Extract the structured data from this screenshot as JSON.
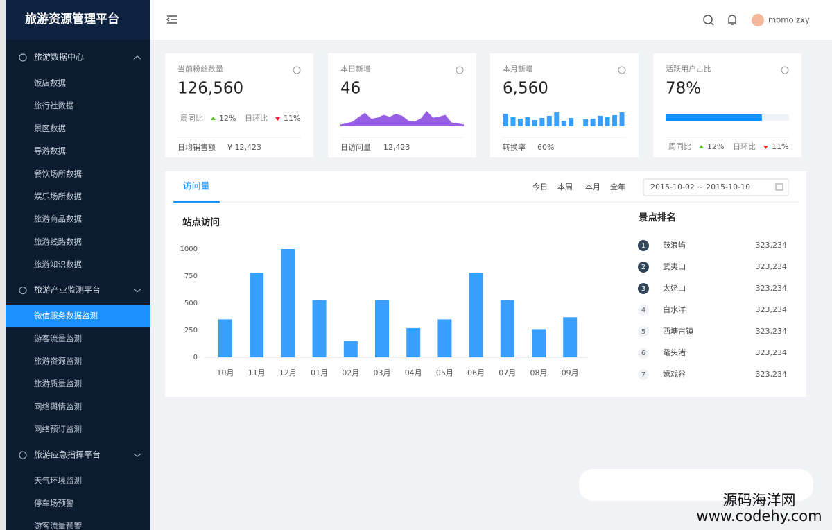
{
  "sidebar": {
    "title": "旅游资源管理平台",
    "groups": [
      {
        "label": "旅游数据中心",
        "items": [
          {
            "label": "饭店数据"
          },
          {
            "label": "旅行社数据"
          },
          {
            "label": "景区数据"
          },
          {
            "label": "导游数据"
          },
          {
            "label": "餐饮场所数据"
          },
          {
            "label": "娱乐场所数据"
          },
          {
            "label": "旅游商品数据"
          },
          {
            "label": "旅游线路数据"
          },
          {
            "label": "旅游知识数据"
          }
        ]
      },
      {
        "label": "旅游产业监测平台",
        "items": [
          {
            "label": "微信服务数据监测",
            "active": true
          },
          {
            "label": "游客流量监测"
          },
          {
            "label": "旅游资源监测"
          },
          {
            "label": "旅游质量监测"
          },
          {
            "label": "网络舆情监测"
          },
          {
            "label": "网络预订监测"
          }
        ]
      },
      {
        "label": "旅游应急指挥平台",
        "items": [
          {
            "label": "天气环境监测"
          },
          {
            "label": "停车场预警"
          },
          {
            "label": "游客流量预警"
          }
        ]
      }
    ]
  },
  "header": {
    "user": "momo zxy"
  },
  "cards": [
    {
      "label": "当前粉丝数量",
      "value": "126,560",
      "compare": [
        {
          "label": "周同比",
          "trend": "up",
          "value": "12%"
        },
        {
          "label": "日环比",
          "trend": "down",
          "value": "11%"
        }
      ],
      "footer": {
        "label": "日均销售额",
        "value": "¥ 12,423"
      }
    },
    {
      "label": "本日新增",
      "value": "46",
      "sparkline": {
        "type": "area",
        "color": "#975fe4",
        "values": [
          2,
          3,
          5,
          10,
          14,
          8,
          9,
          12,
          10,
          13,
          11,
          6,
          5,
          8,
          16,
          9,
          10,
          12,
          4,
          3,
          2
        ]
      },
      "footer": {
        "label": "日访问量",
        "value": "12,423"
      }
    },
    {
      "label": "本月新增",
      "value": "6,560",
      "sparkline": {
        "type": "bar",
        "color": "#3aa0ff",
        "values": [
          18,
          13,
          11,
          13,
          9,
          12,
          15,
          20,
          8,
          12,
          0,
          10,
          11,
          15,
          13,
          16,
          20
        ]
      },
      "footer": {
        "label": "转换率",
        "value": "60%"
      }
    },
    {
      "label": "活跃用户占比",
      "value": "78%",
      "progress": 78,
      "compare": [
        {
          "label": "周同比",
          "trend": "up",
          "value": "12%"
        },
        {
          "label": "日环比",
          "trend": "down",
          "value": "11%"
        }
      ]
    }
  ],
  "panel": {
    "tab": "访问量",
    "ranges": [
      "今日",
      "本周",
      "本月",
      "全年"
    ],
    "date_range": "2015-10-02 ~ 2015-10-10",
    "ranking": {
      "title": "景点排名",
      "rows": [
        {
          "rank": "1",
          "name": "鼓浪屿",
          "value": "323,234"
        },
        {
          "rank": "2",
          "name": "武夷山",
          "value": "323,234"
        },
        {
          "rank": "3",
          "name": "太姥山",
          "value": "323,234"
        },
        {
          "rank": "4",
          "name": "白水洋",
          "value": "323,234"
        },
        {
          "rank": "5",
          "name": "西塘古镇",
          "value": "323,234"
        },
        {
          "rank": "6",
          "name": "鼋头渚",
          "value": "323,234"
        },
        {
          "rank": "7",
          "name": "嬉戏谷",
          "value": "323,234"
        }
      ]
    }
  },
  "chart_data": {
    "type": "bar",
    "title": "站点访问",
    "color": "#3aa0ff",
    "grid": false,
    "categories": [
      "10月",
      "11月",
      "12月",
      "01月",
      "02月",
      "03月",
      "04月",
      "05月",
      "06月",
      "07月",
      "08月",
      "09月"
    ],
    "values": [
      350,
      780,
      1000,
      530,
      150,
      530,
      270,
      350,
      780,
      530,
      260,
      370
    ],
    "ylim": [
      0,
      1000
    ],
    "yticks": [
      0,
      250,
      500,
      750,
      1000
    ]
  },
  "watermark": {
    "name": "源码海洋网",
    "url": "www.codehy.com"
  }
}
